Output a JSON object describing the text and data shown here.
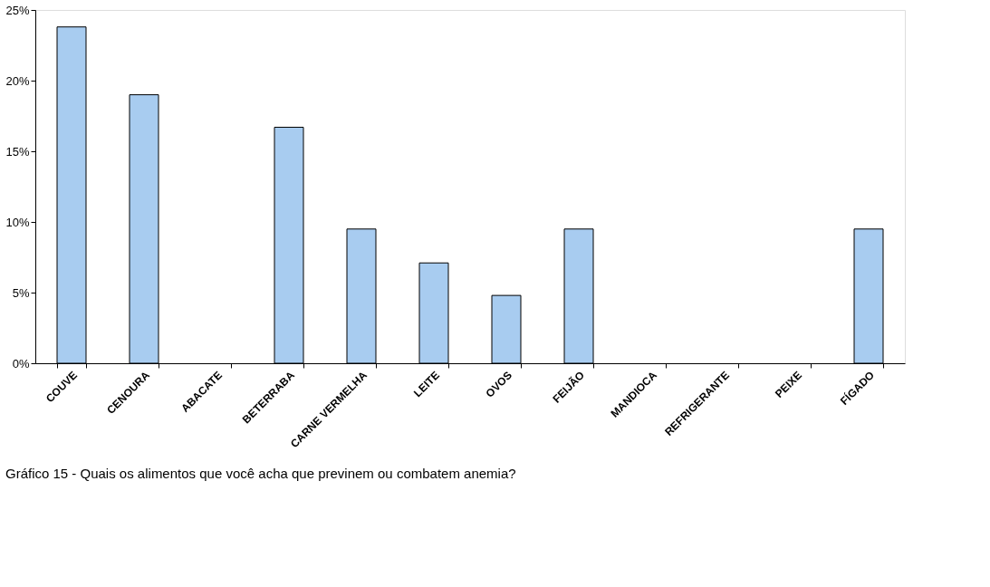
{
  "chart_data": {
    "type": "bar",
    "title": "Gráfico 15 - Quais os alimentos que você acha que previnem ou combatem anemia?",
    "categories": [
      "COUVE",
      "CENOURA",
      "ABACATE",
      "BETERRABA",
      "CARNE VERMELHA",
      "LEITE",
      "OVOS",
      "FEIJÃO",
      "MANDIOCA",
      "REFRIGERANTE",
      "PEIXE",
      "FÍGADO",
      null
    ],
    "values": [
      23.8,
      19.0,
      0,
      16.7,
      9.5,
      7.1,
      4.8,
      9.5,
      0,
      0,
      0,
      9.5,
      null
    ],
    "color": "#a8ccf0",
    "ylim": [
      0,
      25
    ],
    "yticks": [
      {
        "value": 0,
        "label": "0%"
      },
      {
        "value": 5,
        "label": "5%"
      },
      {
        "value": 10,
        "label": "10%"
      },
      {
        "value": 15,
        "label": "15%"
      },
      {
        "value": 20,
        "label": "20%"
      },
      {
        "value": 25,
        "label": "25%"
      }
    ],
    "grid": false
  }
}
